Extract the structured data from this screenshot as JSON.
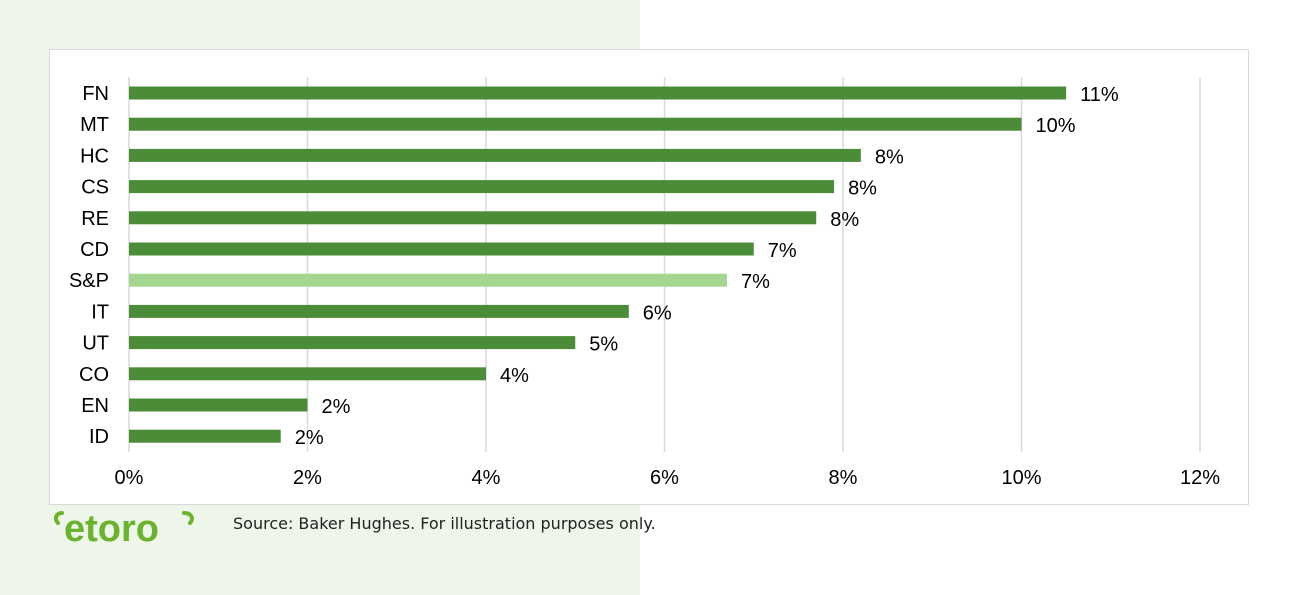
{
  "brand": {
    "logo_icon": "etoro-logo-icon",
    "logo_text": "etoro",
    "color": "#6ab42d"
  },
  "source_note": "Source: Baker Hughes. For illustration purposes only.",
  "colors": {
    "bar": "#4a8c38",
    "highlight": "#a3d78f",
    "grid": "#d9d9d9"
  },
  "chart_data": {
    "type": "bar",
    "orientation": "horizontal",
    "categories": [
      "FN",
      "MT",
      "HC",
      "CS",
      "RE",
      "CD",
      "S&P",
      "IT",
      "UT",
      "CO",
      "EN",
      "ID"
    ],
    "values": [
      10.5,
      10.0,
      8.2,
      7.9,
      7.7,
      7.0,
      6.7,
      5.6,
      5.0,
      4.0,
      2.0,
      1.7
    ],
    "data_labels": [
      "11%",
      "10%",
      "8%",
      "8%",
      "8%",
      "7%",
      "7%",
      "6%",
      "5%",
      "4%",
      "2%",
      "2%"
    ],
    "highlight_category": "S&P",
    "xlim": [
      0,
      12
    ],
    "xticks": [
      0,
      2,
      4,
      6,
      8,
      10,
      12
    ],
    "xtick_labels": [
      "0%",
      "2%",
      "4%",
      "6%",
      "8%",
      "10%",
      "12%"
    ],
    "title": "",
    "xlabel": "",
    "ylabel": "",
    "grid": "vertical",
    "legend": "none"
  }
}
